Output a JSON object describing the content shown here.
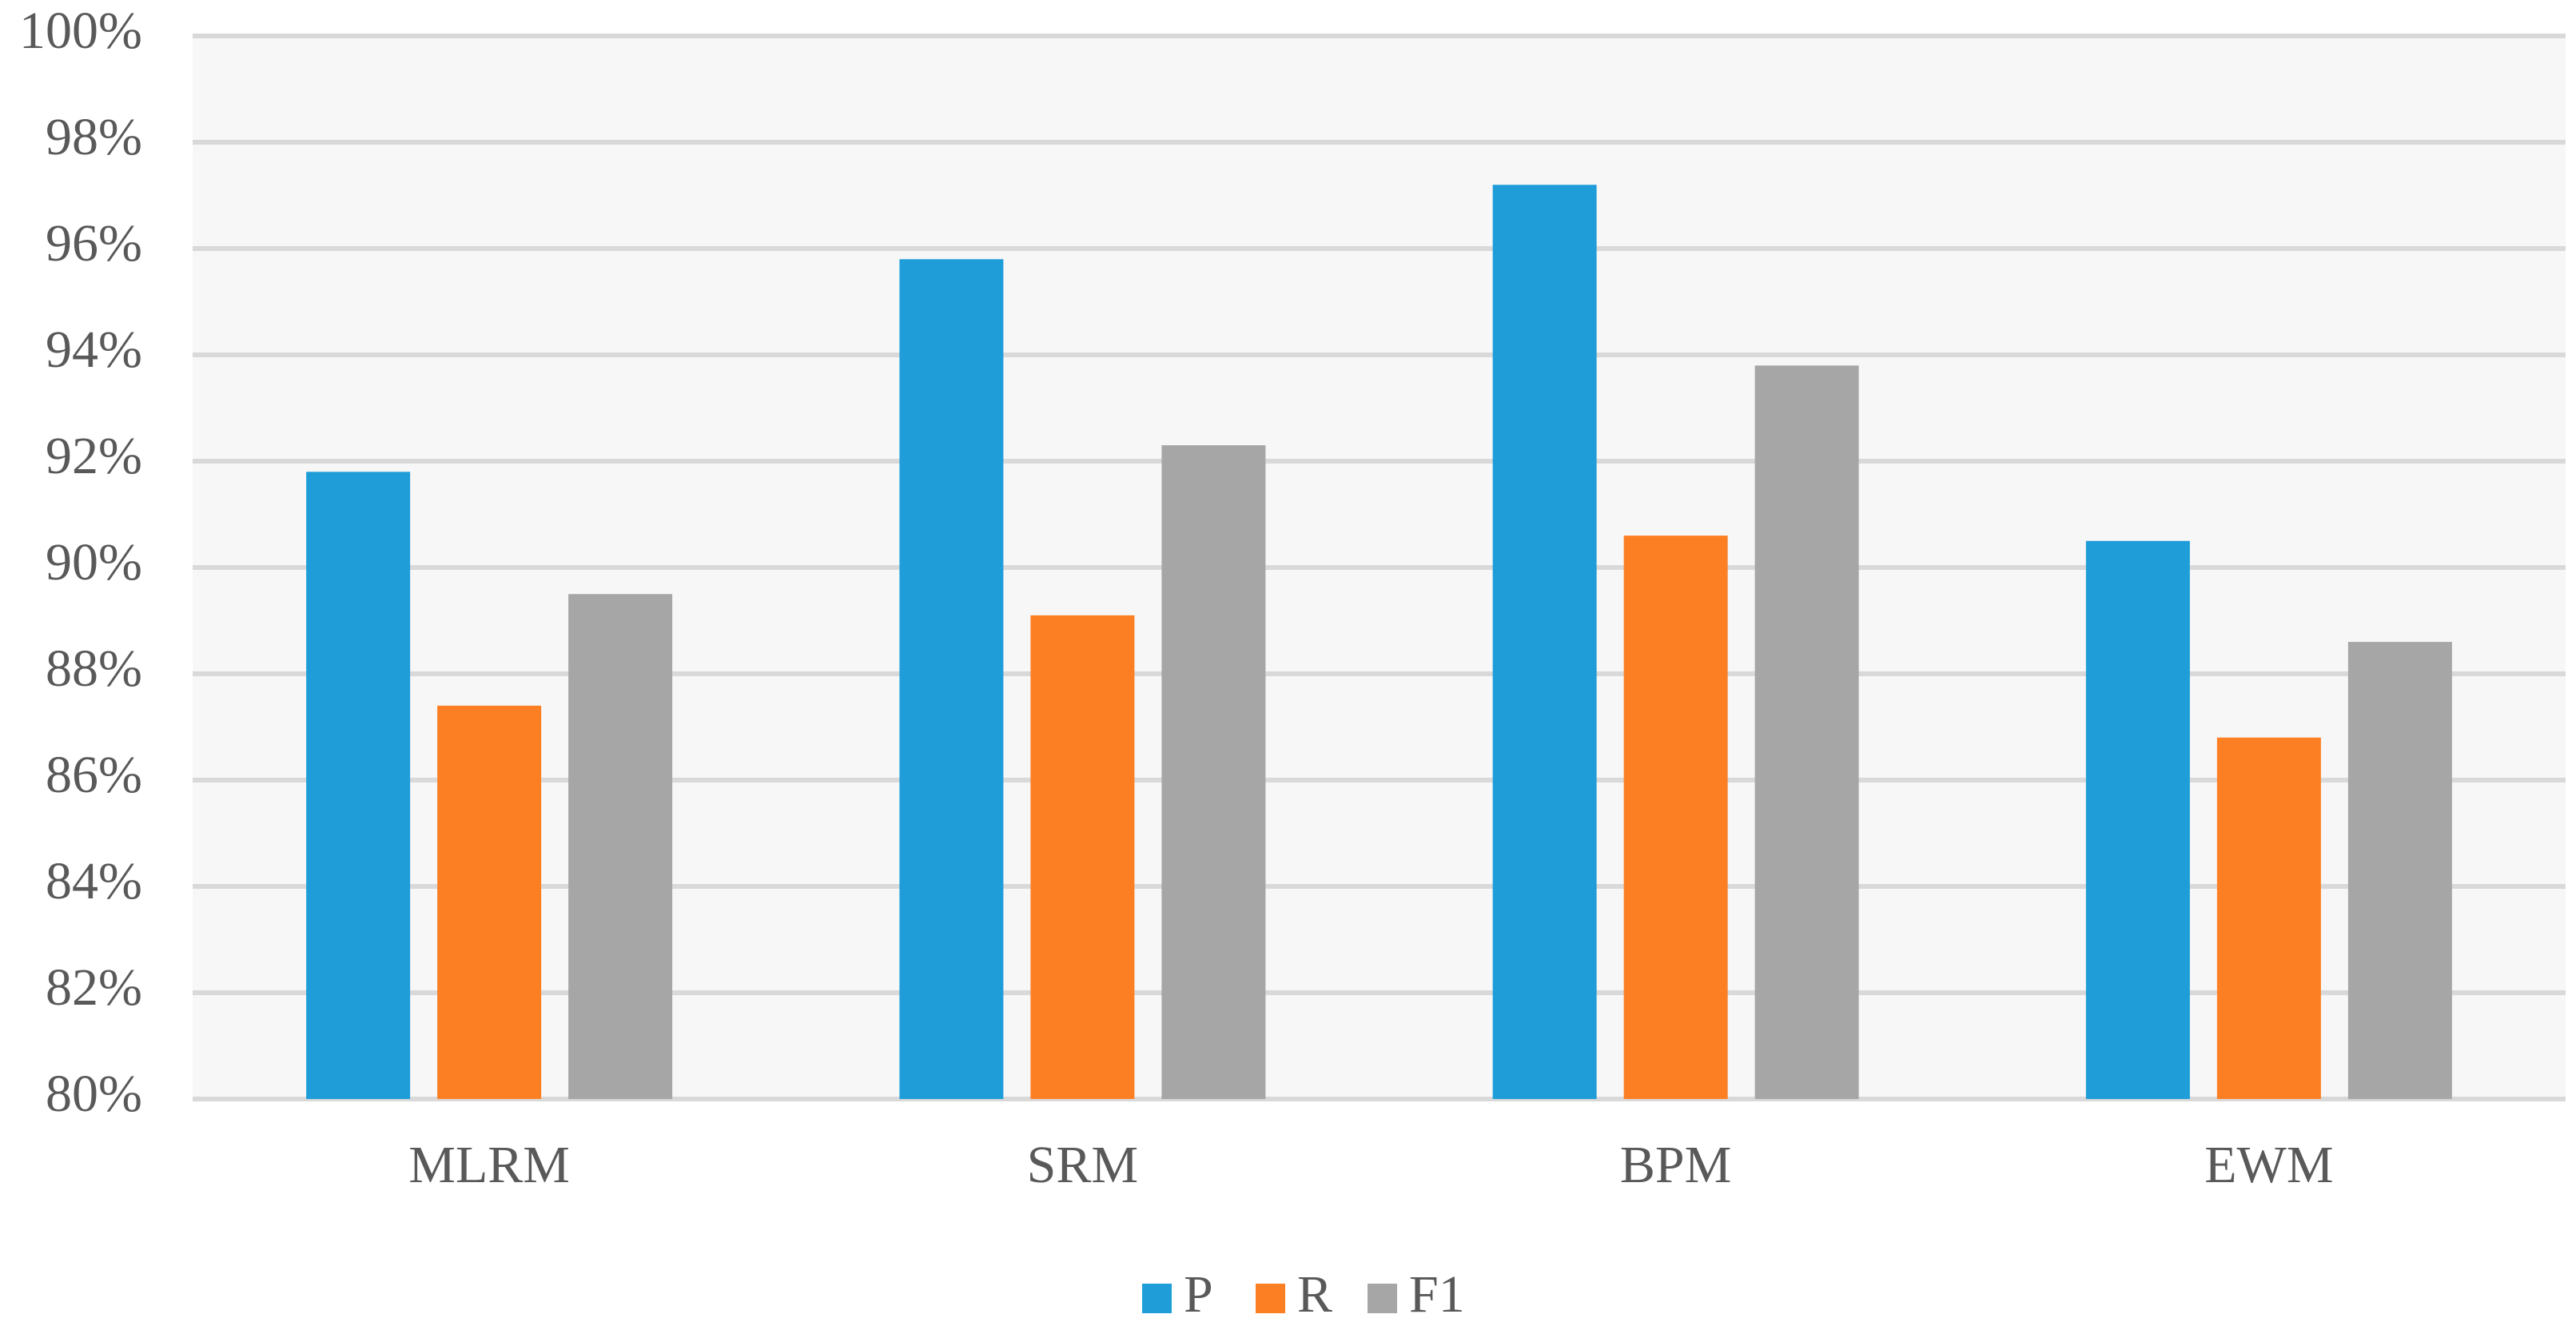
{
  "chart_data": {
    "type": "bar",
    "categories": [
      "MLRM",
      "SRM",
      "BPM",
      "EWM"
    ],
    "series": [
      {
        "name": "P",
        "color": "#1f9dd9",
        "values": [
          91.8,
          95.8,
          97.2,
          90.5
        ]
      },
      {
        "name": "R",
        "color": "#fd7f24",
        "values": [
          87.4,
          89.1,
          90.6,
          86.8
        ]
      },
      {
        "name": "F1",
        "color": "#a6a6a6",
        "values": [
          89.5,
          92.3,
          93.8,
          88.6
        ]
      }
    ],
    "ylim": [
      80,
      100
    ],
    "yticks": [
      {
        "value": 80,
        "label": "80%"
      },
      {
        "value": 82,
        "label": "82%"
      },
      {
        "value": 84,
        "label": "84%"
      },
      {
        "value": 86,
        "label": "86%"
      },
      {
        "value": 88,
        "label": "88%"
      },
      {
        "value": 90,
        "label": "90%"
      },
      {
        "value": 92,
        "label": "92%"
      },
      {
        "value": 94,
        "label": "94%"
      },
      {
        "value": 96,
        "label": "96%"
      },
      {
        "value": 98,
        "label": "98%"
      },
      {
        "value": 100,
        "label": "100%"
      }
    ],
    "grid": true,
    "legend": "bottom"
  }
}
